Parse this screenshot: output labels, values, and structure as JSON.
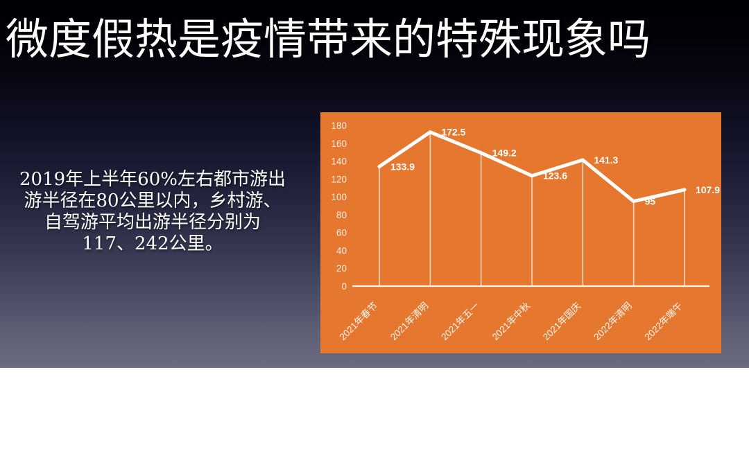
{
  "slide": {
    "title": "微度假热是疫情带来的特殊现象吗",
    "body_lines": [
      "2019年上半年60%左右都市游出",
      "游半径在80公里以内，乡村游、",
      "自驾游平均出游半径分别为",
      "117、242公里。"
    ]
  },
  "colors": {
    "slide_bg_top": "#000002",
    "slide_bg_bottom": "#6A6B80",
    "chart_panel_bg": "#E5772F",
    "chart_foreground": "#FFFFFF",
    "title_text": "#FFFFFF",
    "body_text": "#FFFFFF"
  },
  "chart_data": {
    "type": "line",
    "categories": [
      "2021年春节",
      "2021年清明",
      "2021年五一",
      "2021年中秋",
      "2021年国庆",
      "2022年清明",
      "2022年端午"
    ],
    "values": [
      133.9,
      172.5,
      149.2,
      123.6,
      141.3,
      95,
      107.9
    ],
    "data_labels": [
      "133.9",
      "172.5",
      "149.2",
      "123.6",
      "141.3",
      "95",
      "107.9"
    ],
    "title": "",
    "xlabel": "",
    "ylabel": "",
    "ylim": [
      0,
      180
    ],
    "ytick_step": 20,
    "ytick_labels": [
      "0",
      "20",
      "40",
      "60",
      "80",
      "100",
      "120",
      "140",
      "160",
      "180"
    ],
    "grid": false,
    "legend_position": "none",
    "series_color": "#FFFFFF",
    "background": "#E5772F",
    "category_label_rotation_deg": -45,
    "features": [
      "drop-lines",
      "data-labels-right-of-points",
      "baseline-axis-only"
    ]
  }
}
